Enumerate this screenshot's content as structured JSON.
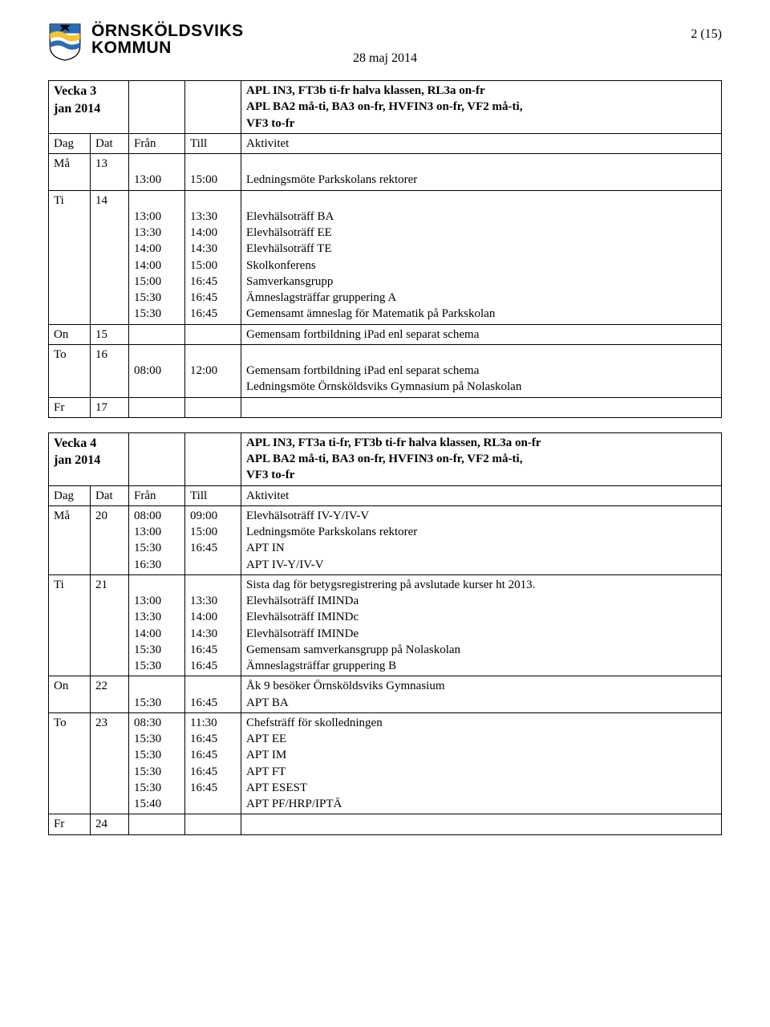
{
  "header": {
    "logo_line1": "ÖRNSKÖLDSVIKS",
    "logo_line2": "KOMMUN",
    "date_line": "28 maj 2014",
    "page_indicator": "2 (15)",
    "logo_colors": {
      "blue": "#2a6db5",
      "yellow": "#f4c430",
      "white": "#ffffff",
      "black": "#000000"
    }
  },
  "table1": {
    "week_label": "Vecka 3",
    "week_sub": "jan 2014",
    "apl_line1": "APL IN3, FT3b ti-fr halva klassen, RL3a on-fr",
    "apl_line2": "APL BA2 må-ti, BA3 on-fr, HVFIN3 on-fr, VF2 må-ti,",
    "apl_line3": "VF3 to-fr",
    "col_day": "Dag",
    "col_dat": "Dat",
    "col_from": "Från",
    "col_till": "Till",
    "col_act": "Aktivitet",
    "rows": {
      "r1": {
        "day": "Må",
        "dat": "13",
        "from": "13:00",
        "till": "15:00",
        "act": "Ledningsmöte Parkskolans rektorer"
      },
      "r2": {
        "day": "Ti",
        "dat": "14",
        "from": "13:00\n13:30\n14:00\n14:00\n15:00\n15:30\n15:30",
        "till": "13:30\n14:00\n14:30\n15:00\n16:45\n16:45\n16:45",
        "act": "Elevhälsoträff BA\nElevhälsoträff EE\nElevhälsoträff TE\nSkolkonferens\nSamverkansgrupp\nÄmneslagsträffar gruppering A\nGemensamt ämneslag för Matematik på Parkskolan"
      },
      "r3": {
        "day": "On",
        "dat": "15",
        "from": "",
        "till": "",
        "act": "Gemensam fortbildning iPad enl separat schema"
      },
      "r4": {
        "day": "To",
        "dat": "16",
        "from": "08:00",
        "till": "12:00",
        "act": "Gemensam fortbildning iPad enl separat schema\nLedningsmöte Örnsköldsviks Gymnasium på Nolaskolan"
      },
      "r5": {
        "day": "Fr",
        "dat": "17",
        "from": "",
        "till": "",
        "act": ""
      }
    }
  },
  "table2": {
    "week_label": "Vecka 4",
    "week_sub": "jan 2014",
    "apl_line1": "APL IN3, FT3a ti-fr, FT3b ti-fr halva klassen, RL3a on-fr",
    "apl_line2": "APL BA2 må-ti, BA3 on-fr, HVFIN3 on-fr, VF2 må-ti,",
    "apl_line3": "VF3 to-fr",
    "col_day": "Dag",
    "col_dat": "Dat",
    "col_from": "Från",
    "col_till": "Till",
    "col_act": "Aktivitet",
    "rows": {
      "r1": {
        "day": "Må",
        "dat": "20",
        "from": "08:00\n13:00\n15:30\n16:30",
        "till": "09:00\n15:00\n16:45",
        "act": "Elevhälsoträff IV-Y/IV-V\nLedningsmöte Parkskolans rektorer\nAPT IN\nAPT IV-Y/IV-V"
      },
      "r2": {
        "day": "Ti",
        "dat": "21",
        "from": "\n13:00\n13:30\n14:00\n15:30\n15:30",
        "till": "\n13:30\n14:00\n14:30\n16:45\n16:45",
        "act": "Sista dag för betygsregistrering på avslutade kurser ht 2013.\nElevhälsoträff IMINDa\nElevhälsoträff IMINDc\nElevhälsoträff IMINDe\nGemensam samverkansgrupp på Nolaskolan\nÄmneslagsträffar gruppering B"
      },
      "r3": {
        "day": "On",
        "dat": "22",
        "from": "\n15:30",
        "till": "\n16:45",
        "act": "Åk 9 besöker Örnsköldsviks Gymnasium\nAPT BA"
      },
      "r4": {
        "day": "To",
        "dat": "23",
        "from": "08:30\n15:30\n15:30\n15:30\n15:30\n15:40",
        "till": "11:30\n16:45\n16:45\n16:45\n16:45",
        "act": "Chefsträff för skolledningen\nAPT EE\nAPT IM\nAPT FT\nAPT ESEST\nAPT PF/HRP/IPTÄ"
      },
      "r5": {
        "day": "Fr",
        "dat": "24",
        "from": "",
        "till": "",
        "act": ""
      }
    }
  }
}
